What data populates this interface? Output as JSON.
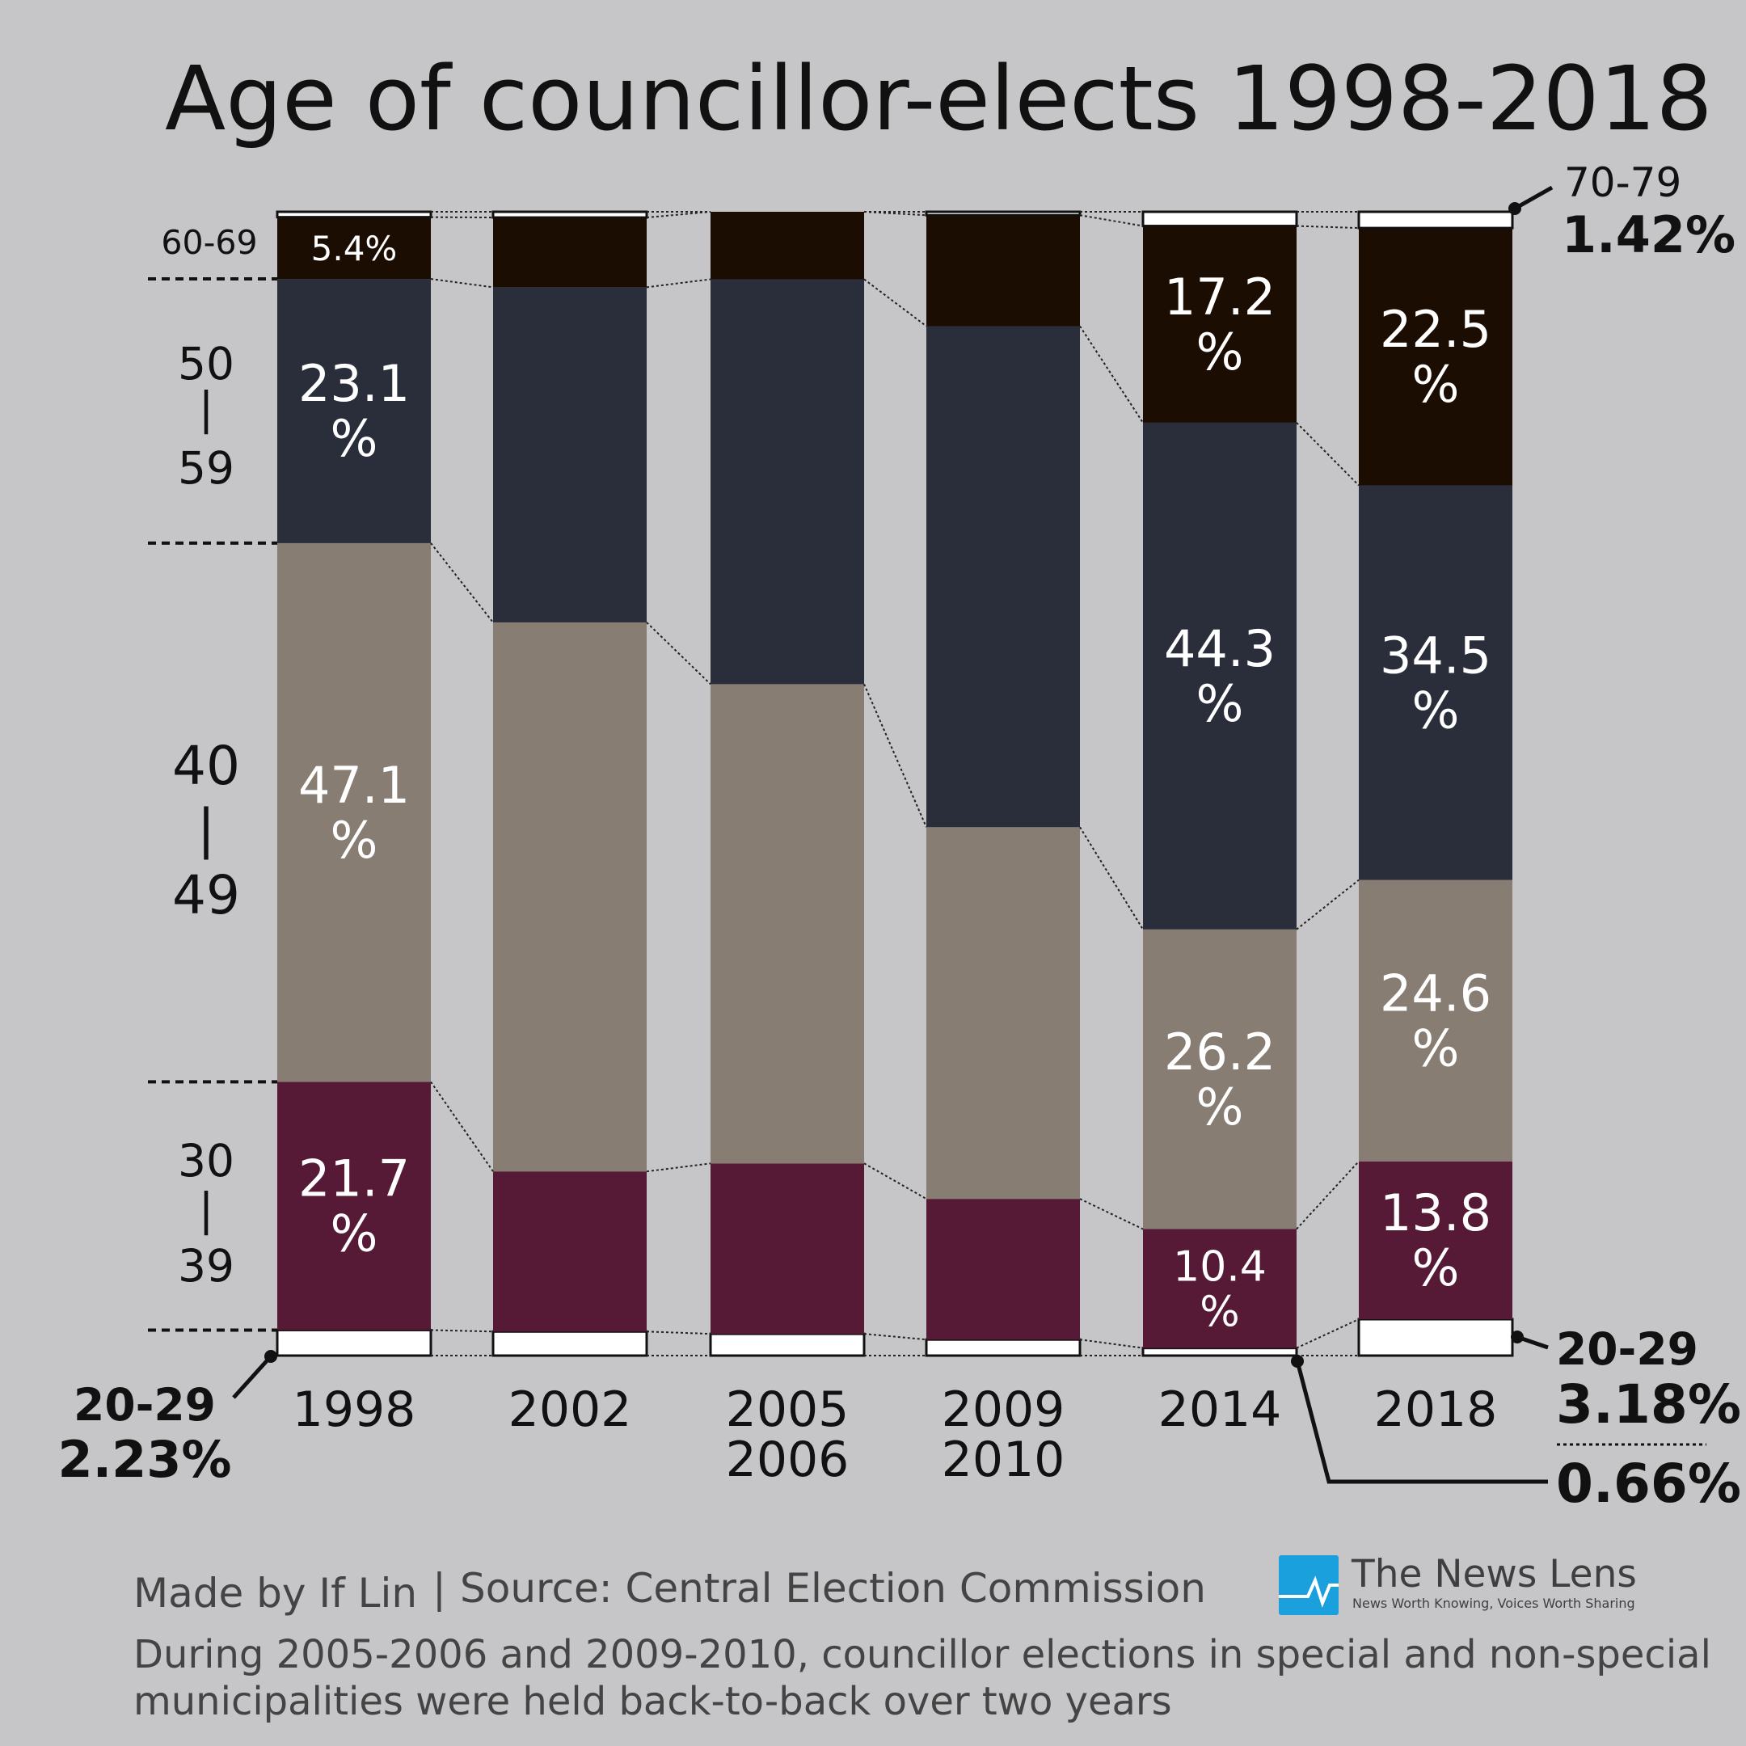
{
  "chart_data": {
    "type": "bar",
    "stacked": true,
    "title": "Age of councillor-elects 1998-2018",
    "categories": [
      "1998",
      "2002",
      "2005\n2006",
      "2009\n2010",
      "2014",
      "2018"
    ],
    "category_lines": [
      [
        "1998"
      ],
      [
        "2002"
      ],
      [
        "2005",
        "2006"
      ],
      [
        "2009",
        "2010"
      ],
      [
        "2014"
      ],
      [
        "2018"
      ]
    ],
    "unit": "%",
    "ylim": [
      0,
      100
    ],
    "series": [
      {
        "name": "20-29",
        "color": "#ffffff",
        "values": [
          2.23,
          2.1,
          1.9,
          1.4,
          0.66,
          3.18
        ]
      },
      {
        "name": "30-39",
        "color": "#561a37",
        "values": [
          21.7,
          14.0,
          14.9,
          12.3,
          10.4,
          13.8
        ]
      },
      {
        "name": "40-49",
        "color": "#887d73",
        "values": [
          47.1,
          48.0,
          41.9,
          32.5,
          26.2,
          24.6
        ]
      },
      {
        "name": "50-59",
        "color": "#2a2e3a",
        "values": [
          23.1,
          29.3,
          35.4,
          43.8,
          44.3,
          34.5
        ]
      },
      {
        "name": "60-69",
        "color": "#1c0d02",
        "values": [
          5.4,
          6.1,
          5.9,
          9.7,
          17.2,
          22.5
        ]
      },
      {
        "name": "70-79",
        "color": "#ffffff",
        "values": [
          0.47,
          0.4,
          0.0,
          0.3,
          1.0,
          1.42
        ]
      }
    ],
    "data_labels": [
      {
        "category": 0,
        "series": 4,
        "text": "5.4%"
      },
      {
        "category": 0,
        "series": 3,
        "num": "23.1",
        "pct": "%"
      },
      {
        "category": 0,
        "series": 2,
        "num": "47.1",
        "pct": "%"
      },
      {
        "category": 0,
        "series": 1,
        "num": "21.7",
        "pct": "%"
      },
      {
        "category": 4,
        "series": 4,
        "num": "17.2",
        "pct": "%"
      },
      {
        "category": 4,
        "series": 3,
        "num": "44.3",
        "pct": "%"
      },
      {
        "category": 4,
        "series": 2,
        "num": "26.2",
        "pct": "%"
      },
      {
        "category": 4,
        "series": 1,
        "num": "10.4",
        "pct": "%"
      },
      {
        "category": 5,
        "series": 4,
        "num": "22.5",
        "pct": "%"
      },
      {
        "category": 5,
        "series": 3,
        "num": "34.5",
        "pct": "%"
      },
      {
        "category": 5,
        "series": 2,
        "num": "24.6",
        "pct": "%"
      },
      {
        "category": 5,
        "series": 1,
        "num": "13.8",
        "pct": "%"
      }
    ],
    "grid": false,
    "legend": "none"
  },
  "age_axis": {
    "a60": "60-69",
    "a50_top": "50",
    "a50_bot": "59",
    "a40_top": "40",
    "a40_bot": "49",
    "a30_top": "30",
    "a30_bot": "39",
    "bar": "|"
  },
  "annotations": {
    "top_right_label": "70-79",
    "top_right_value": "1.42%",
    "left_label": "20-29",
    "left_value": "2.23%",
    "right_label": "20-29",
    "right_value": "3.18%",
    "right_value2": "0.66%"
  },
  "footer": {
    "made_by": "Made by If Lin",
    "separator": "|",
    "source": "Source: Central Election Commission",
    "note_line1": "During 2005-2006 and 2009-2010, councillor elections in special and non-special",
    "note_line2": "municipalities were held back-to-back over two years",
    "logo_name": "The News Lens",
    "logo_tagline": "News Worth Knowing, Voices Worth Sharing",
    "logo_color": "#1aa0dc"
  }
}
